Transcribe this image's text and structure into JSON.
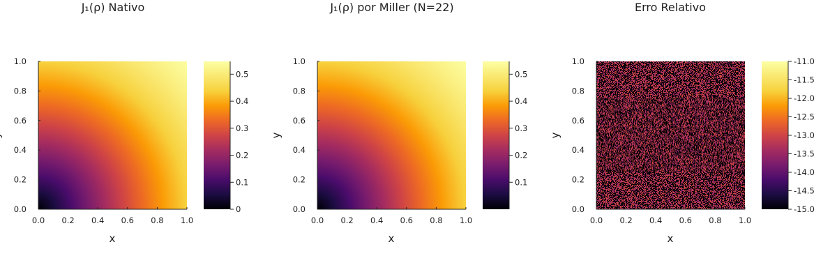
{
  "chart_data": [
    {
      "type": "heatmap",
      "title": "J₁(ρ) Nativo",
      "xlabel": "x",
      "ylabel": "y",
      "xlim": [
        0.0,
        1.0
      ],
      "ylim": [
        0.0,
        1.0
      ],
      "xticks": [
        "0.0",
        "0.2",
        "0.4",
        "0.6",
        "0.8",
        "1.0"
      ],
      "yticks": [
        "0.0",
        "0.2",
        "0.4",
        "0.6",
        "0.8",
        "1.0"
      ],
      "function": "J1(sqrt(x^2+y^2))",
      "colormap": "inferno",
      "colorbar": {
        "min": 0.0,
        "max": 0.5474,
        "ticks": [
          0,
          0.1,
          0.2,
          0.3,
          0.4,
          0.5
        ],
        "ticklabels": [
          "0",
          "0.1",
          "0.2",
          "0.3",
          "0.4",
          "0.5"
        ]
      }
    },
    {
      "type": "heatmap",
      "title": "J₁(ρ) por Miller (N=22)",
      "xlabel": "x",
      "ylabel": "y",
      "xlim": [
        0.0,
        1.0
      ],
      "ylim": [
        0.0,
        1.0
      ],
      "xticks": [
        "0.0",
        "0.2",
        "0.4",
        "0.6",
        "0.8",
        "1.0"
      ],
      "yticks": [
        "0.0",
        "0.2",
        "0.4",
        "0.6",
        "0.8",
        "1.0"
      ],
      "function": "J1(sqrt(x^2+y^2))",
      "colormap": "inferno",
      "colorbar": {
        "min": 0.0,
        "max": 0.5474,
        "ticks": [
          0.1,
          0.2,
          0.3,
          0.4,
          0.5
        ],
        "ticklabels": [
          "0.1",
          "0.2",
          "0.3",
          "0.4",
          "0.5"
        ]
      }
    },
    {
      "type": "heatmap",
      "title": "Erro Relativo",
      "xlabel": "x",
      "ylabel": "y",
      "xlim": [
        0.0,
        1.0
      ],
      "ylim": [
        0.0,
        1.0
      ],
      "xticks": [
        "0.0",
        "0.2",
        "0.4",
        "0.6",
        "0.8",
        "1.0"
      ],
      "yticks": [
        "0.0",
        "0.2",
        "0.4",
        "0.6",
        "0.8",
        "1.0"
      ],
      "function": "log10 relative error (noise)",
      "value_levels": [
        -15.0,
        -15.0,
        -13.5,
        -13.0
      ],
      "colormap": "inferno",
      "colorbar": {
        "min": -15.0,
        "max": -11.0,
        "ticks": [
          -15.0,
          -14.5,
          -14.0,
          -13.5,
          -13.0,
          -12.5,
          -12.0,
          -11.5,
          -11.0
        ],
        "ticklabels": [
          "-15.0",
          "-14.5",
          "-14.0",
          "-13.5",
          "-13.0",
          "-12.5",
          "-12.0",
          "-11.5",
          "-11.0"
        ]
      }
    }
  ]
}
